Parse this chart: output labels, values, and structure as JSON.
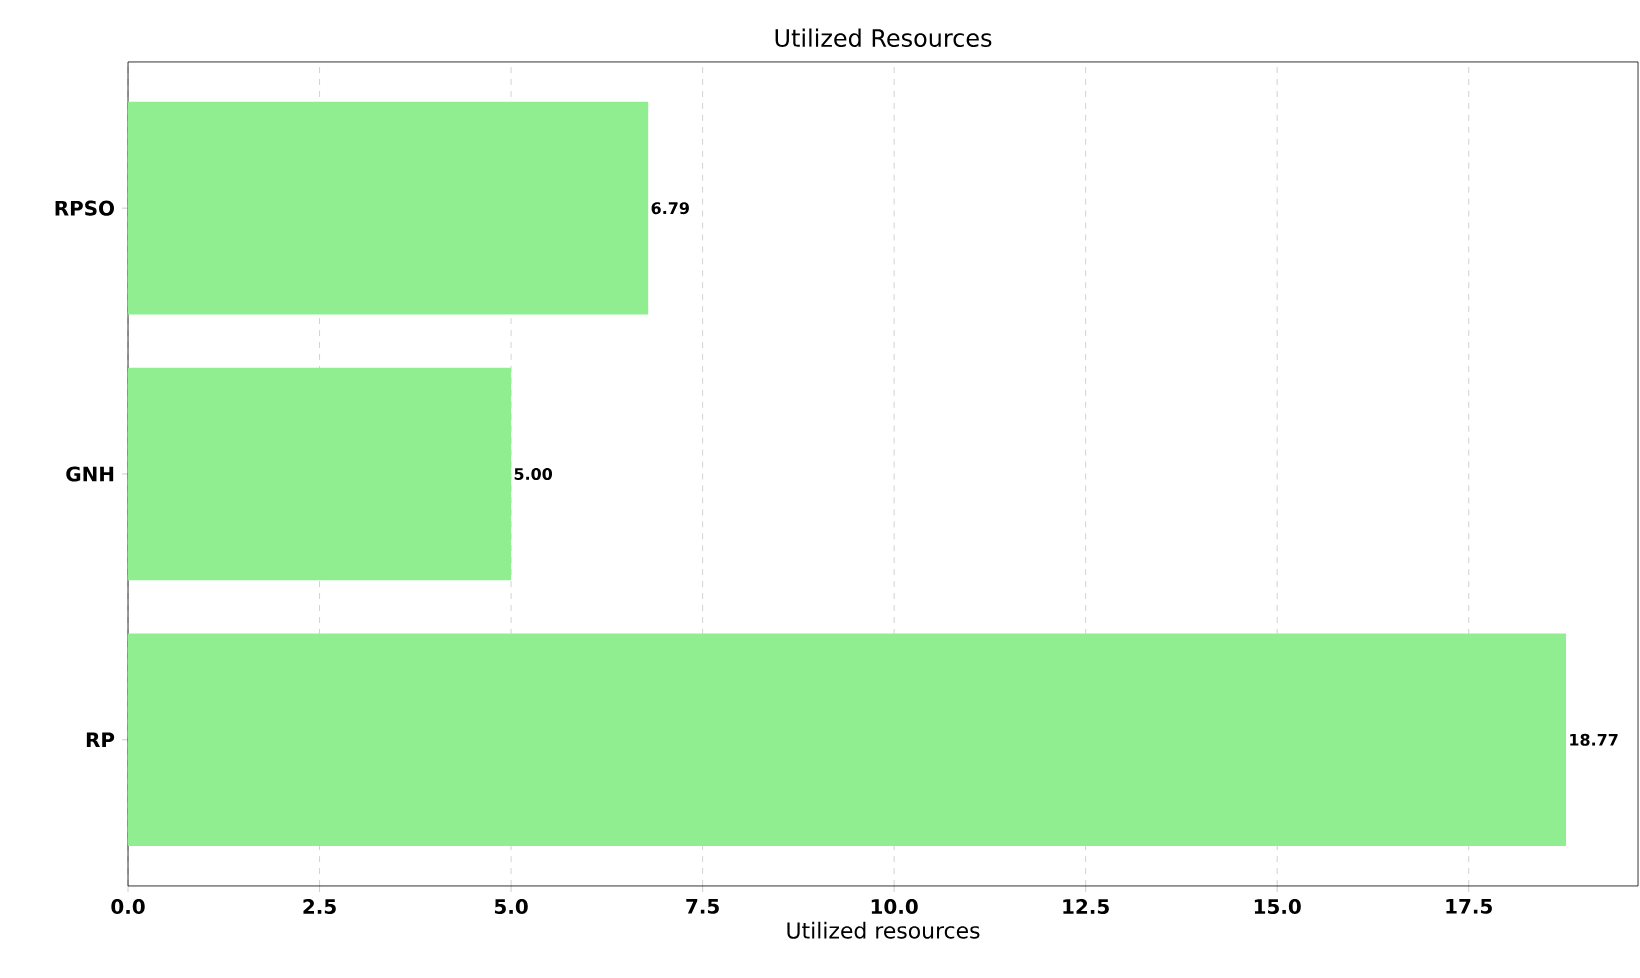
{
  "chart_data": {
    "type": "bar",
    "orientation": "horizontal",
    "title": "Utilized Resources",
    "xlabel": "Utilized resources",
    "categories": [
      "RPSO",
      "GNH",
      "RP"
    ],
    "values": [
      6.79,
      5.0,
      18.77
    ],
    "value_labels": [
      "6.79",
      "5.00",
      "18.77"
    ],
    "color": "#90ee90",
    "xlim": [
      0,
      19.71
    ],
    "xticks": [
      {
        "value": 0,
        "label": "0.0"
      },
      {
        "value": 2.5,
        "label": "2.5"
      },
      {
        "value": 5,
        "label": "5.0"
      },
      {
        "value": 7.5,
        "label": "7.5"
      },
      {
        "value": 10,
        "label": "10.0"
      },
      {
        "value": 12.5,
        "label": "12.5"
      },
      {
        "value": 15,
        "label": "15.0"
      },
      {
        "value": 17.5,
        "label": "17.5"
      }
    ],
    "grid": "x"
  }
}
